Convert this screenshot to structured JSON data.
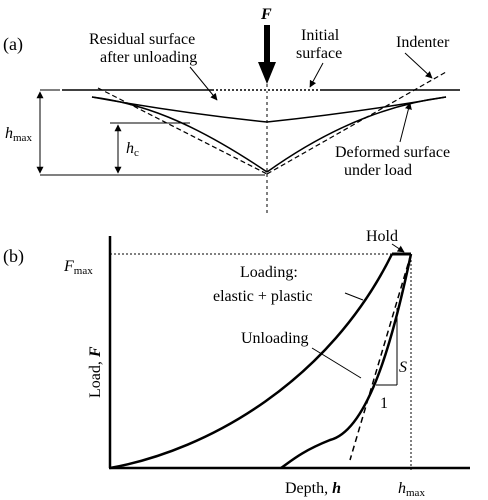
{
  "panel_a": {
    "label": "(a)",
    "force_symbol": "F",
    "residual_surface": [
      "Residual surface",
      "after unloading"
    ],
    "initial_surface": [
      "Initial",
      "surface"
    ],
    "indenter": "Indenter",
    "h_max": {
      "sym": "h",
      "sub": "max"
    },
    "h_c": {
      "sym": "h",
      "sub": "c"
    },
    "deformed_surface": [
      "Deformed surface",
      "under load"
    ]
  },
  "panel_b": {
    "label": "(b)",
    "hold": "Hold",
    "f_max": {
      "sym": "F",
      "sub": "max"
    },
    "loading": [
      "Loading:",
      "elastic + plastic"
    ],
    "unloading": "Unloading",
    "stiffness": "S",
    "unit_one": "1",
    "y_axis": {
      "text": "Load, ",
      "sym": "F"
    },
    "x_axis": {
      "text": "Depth, ",
      "sym": "h"
    },
    "h_max": {
      "sym": "h",
      "sub": "max"
    }
  }
}
